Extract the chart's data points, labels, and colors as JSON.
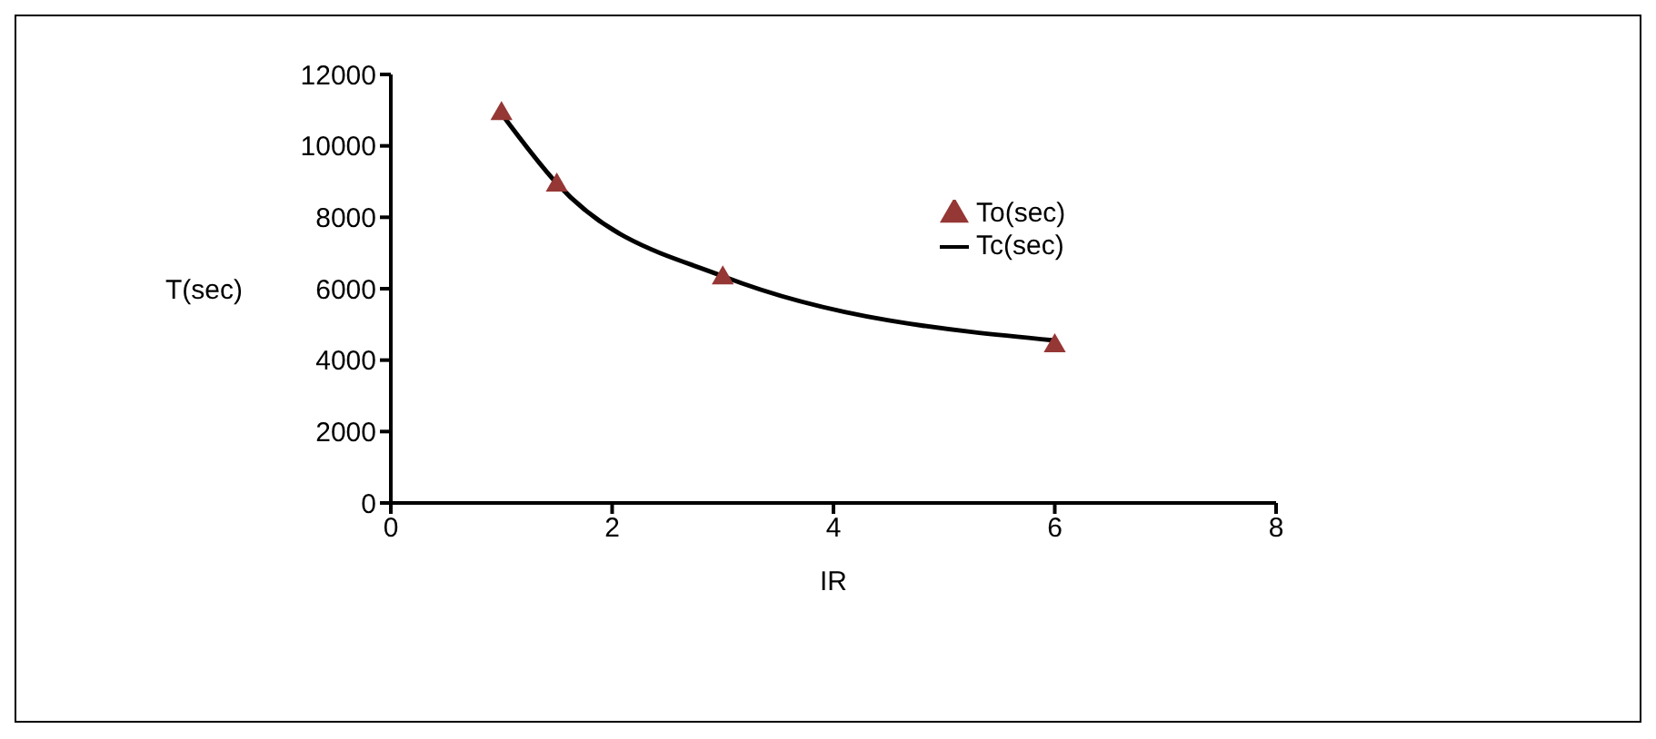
{
  "chart_data": {
    "type": "scatter",
    "xlabel": "IR",
    "ylabel": "T(sec)",
    "x": [
      1,
      1.5,
      3,
      6
    ],
    "series": [
      {
        "name": "To(sec)",
        "type": "scatter",
        "color": "#953735",
        "marker": "triangle",
        "values": [
          10900,
          8900,
          6300,
          4400
        ]
      },
      {
        "name": "Tc(sec)",
        "type": "line",
        "color": "#000000",
        "marker": "none",
        "values": [
          10900,
          8950,
          6350,
          4550
        ]
      }
    ],
    "xlim": [
      0,
      8
    ],
    "xticks": [
      0,
      2,
      4,
      6,
      8
    ],
    "ylim": [
      0,
      12000
    ],
    "yticks": [
      0,
      2000,
      4000,
      6000,
      8000,
      10000,
      12000
    ],
    "grid": false,
    "legend": "top right"
  }
}
